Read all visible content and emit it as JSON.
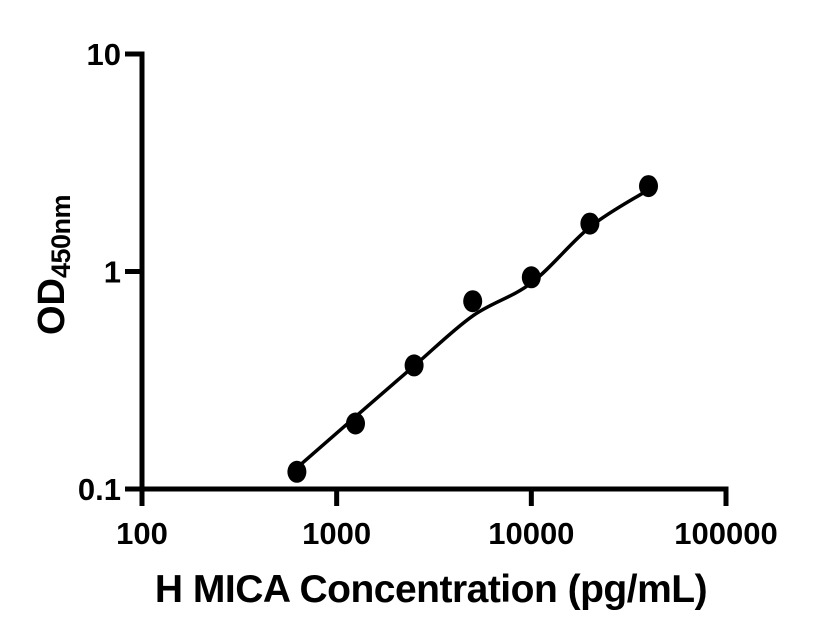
{
  "figure": {
    "background_color": "#ffffff",
    "ink_color": "#000000"
  },
  "chart_data": {
    "type": "scatter",
    "title": "",
    "xlabel": "H MICA Concentration (pg/mL)",
    "ylabel": "OD",
    "ylabel_subscript": "450nm",
    "x_scale": "log",
    "y_scale": "log",
    "xlim": [
      100,
      100000
    ],
    "ylim": [
      0.1,
      10
    ],
    "x_ticks": [
      100,
      1000,
      10000,
      100000
    ],
    "x_tick_labels": [
      "100",
      "1000",
      "10000",
      "100000"
    ],
    "y_ticks": [
      0.1,
      1,
      10
    ],
    "y_tick_labels": [
      "0.1",
      "1",
      "10"
    ],
    "grid": false,
    "legend": null,
    "series": [
      {
        "name": "standard points",
        "marker": "filled-circle",
        "color": "#000000",
        "x": [
          625,
          1250,
          2500,
          5000,
          10000,
          20000,
          40000
        ],
        "y": [
          0.12,
          0.2,
          0.37,
          0.73,
          0.94,
          1.66,
          2.47
        ]
      }
    ],
    "fit_curve": {
      "name": "fitted standard curve",
      "color": "#000000",
      "x": [
        650,
        1250,
        2500,
        5000,
        10000,
        20000,
        38500
      ],
      "y": [
        0.129,
        0.215,
        0.368,
        0.625,
        0.885,
        1.6,
        2.33
      ]
    }
  }
}
